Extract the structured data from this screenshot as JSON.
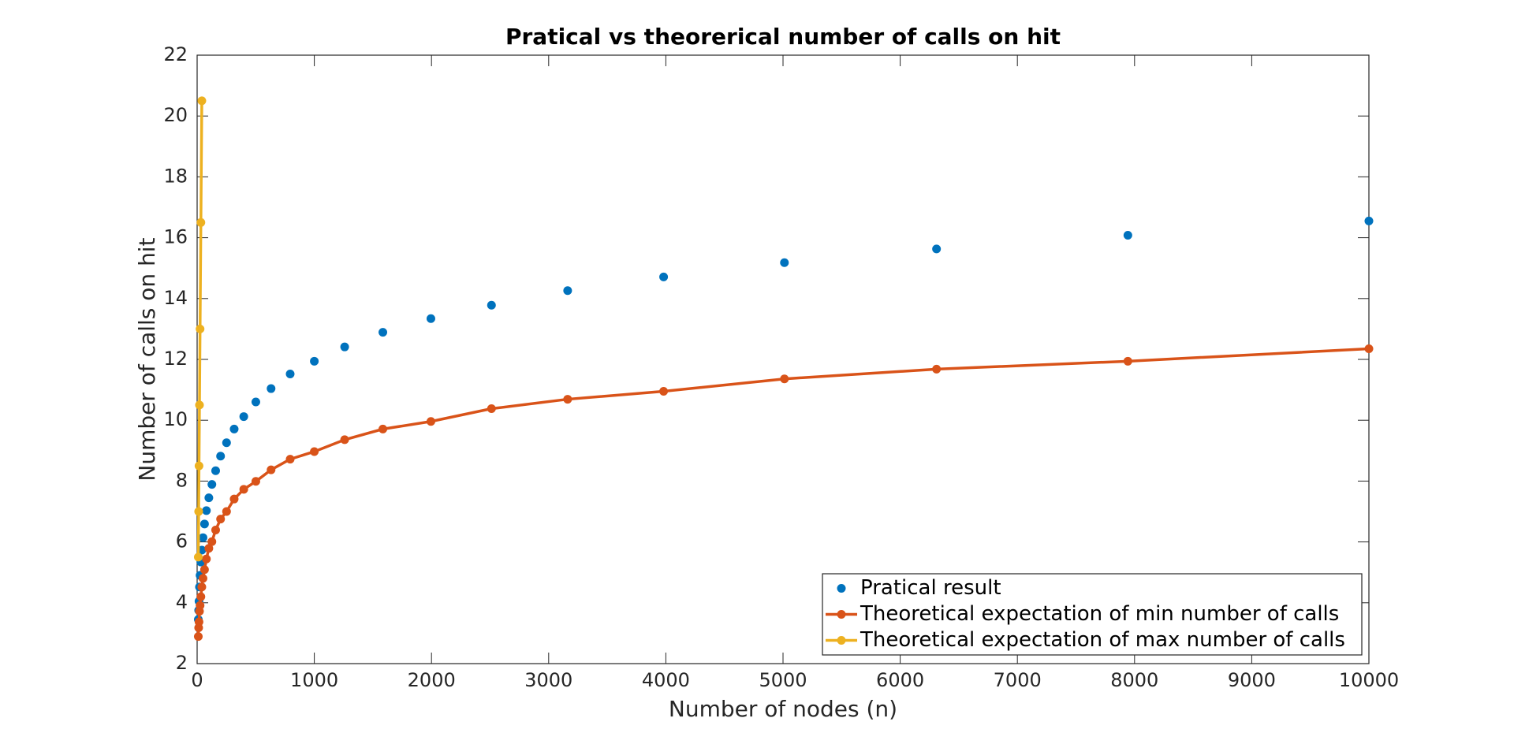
{
  "chart_data": {
    "type": "line",
    "title": "Pratical vs theorerical number of calls on hit",
    "xlabel": "Number of nodes (n)",
    "ylabel": "Number of calls on hit",
    "xlim": [
      0,
      10000
    ],
    "ylim": [
      2,
      22
    ],
    "xticks": [
      0,
      1000,
      2000,
      3000,
      4000,
      5000,
      6000,
      7000,
      8000,
      9000,
      10000
    ],
    "yticks": [
      2,
      4,
      6,
      8,
      10,
      12,
      14,
      16,
      18,
      20,
      22
    ],
    "grid": false,
    "legend_position": "lower right",
    "series": [
      {
        "name": "Pratical result",
        "color": "#0072bd",
        "style": "markers",
        "x": [
          10,
          13,
          16,
          20,
          25,
          32,
          40,
          50,
          63,
          79,
          100,
          126,
          158,
          200,
          251,
          316,
          398,
          501,
          631,
          794,
          1000,
          1259,
          1585,
          1995,
          2512,
          3162,
          3981,
          5012,
          6310,
          7943,
          10000
        ],
        "values": [
          3.45,
          3.75,
          4.05,
          4.52,
          4.9,
          5.34,
          5.73,
          6.14,
          6.59,
          7.03,
          7.45,
          7.89,
          8.34,
          8.82,
          9.26,
          9.71,
          10.12,
          10.6,
          11.04,
          11.52,
          11.94,
          12.41,
          12.89,
          13.34,
          13.78,
          14.26,
          14.71,
          15.18,
          15.63,
          16.08,
          16.55
        ]
      },
      {
        "name": "Theoretical expectation of min number of calls",
        "color": "#d95319",
        "style": "lines+markers",
        "x": [
          10,
          13,
          16,
          20,
          25,
          32,
          40,
          50,
          63,
          79,
          100,
          126,
          158,
          200,
          251,
          316,
          398,
          501,
          631,
          794,
          1000,
          1259,
          1585,
          1995,
          2512,
          3162,
          3981,
          5012,
          6310,
          7943,
          10000
        ],
        "values": [
          2.89,
          3.18,
          3.37,
          3.72,
          3.91,
          4.2,
          4.52,
          4.8,
          5.09,
          5.44,
          5.79,
          6.01,
          6.39,
          6.75,
          7.0,
          7.41,
          7.73,
          7.99,
          8.37,
          8.72,
          8.97,
          9.36,
          9.71,
          9.96,
          10.38,
          10.69,
          10.95,
          11.36,
          11.68,
          11.94,
          12.35
        ]
      },
      {
        "name": "Theoretical expectation of max number of calls",
        "color": "#edb120",
        "style": "lines+markers",
        "x": [
          10,
          13,
          16,
          20,
          25,
          32,
          40
        ],
        "values": [
          5.5,
          7,
          8.5,
          10.5,
          13,
          16.5,
          20.5
        ]
      }
    ]
  }
}
